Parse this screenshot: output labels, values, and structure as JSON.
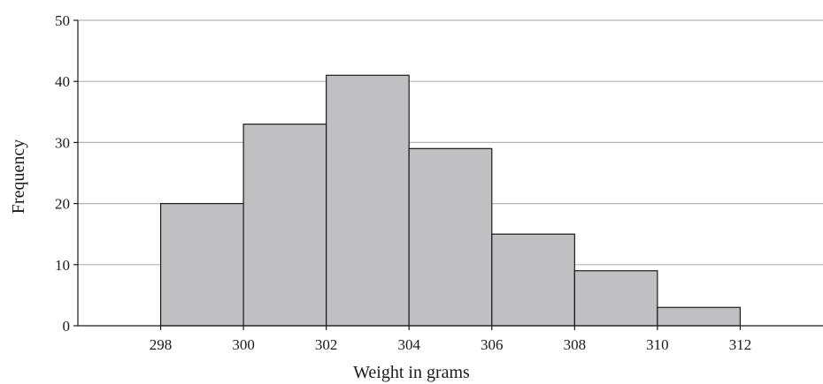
{
  "chart_data": {
    "type": "bar",
    "title": "",
    "xlabel": "Weight in grams",
    "ylabel": "Frequency",
    "bins": [
      {
        "start": 298,
        "end": 300,
        "value": 20
      },
      {
        "start": 300,
        "end": 302,
        "value": 33
      },
      {
        "start": 302,
        "end": 304,
        "value": 41
      },
      {
        "start": 304,
        "end": 306,
        "value": 29
      },
      {
        "start": 306,
        "end": 308,
        "value": 15
      },
      {
        "start": 308,
        "end": 310,
        "value": 9
      },
      {
        "start": 310,
        "end": 312,
        "value": 3
      }
    ],
    "x_ticks": [
      "298",
      "300",
      "302",
      "304",
      "306",
      "308",
      "310",
      "312"
    ],
    "y_ticks": [
      "0",
      "10",
      "20",
      "30",
      "40",
      "50"
    ],
    "xlim": [
      296,
      314
    ],
    "ylim": [
      0,
      50
    ],
    "grid": "horizontal",
    "colors": {
      "bar_fill": "#c0c0c2",
      "bar_stroke": "#1a1a1a",
      "grid": "#b3b3b3",
      "axis": "#1a1a1a"
    }
  }
}
